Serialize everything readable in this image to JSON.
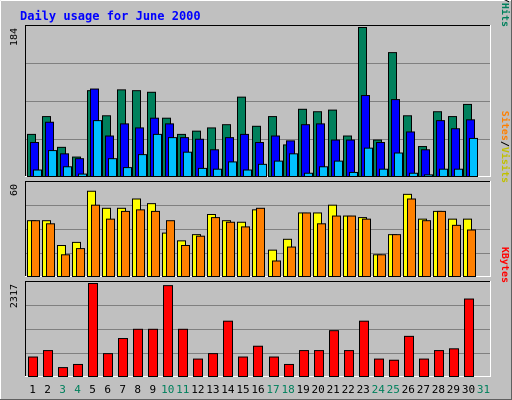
{
  "chart_data": {
    "type": "bar",
    "title": "Daily usage for June 2000",
    "categories": [
      "1",
      "2",
      "3",
      "4",
      "5",
      "6",
      "7",
      "8",
      "9",
      "10",
      "11",
      "12",
      "13",
      "14",
      "15",
      "16",
      "17",
      "18",
      "19",
      "20",
      "21",
      "22",
      "23",
      "24",
      "25",
      "26",
      "27",
      "28",
      "29",
      "30",
      "31"
    ],
    "weekend_days": [
      "3",
      "4",
      "10",
      "11",
      "17",
      "18",
      "24",
      "25",
      "31"
    ],
    "panels": [
      {
        "id": "hits",
        "ymax": 184,
        "ymax_label": "184",
        "legend": [
          "Pages",
          "/",
          "Files",
          "/",
          "Hits"
        ],
        "series": [
          {
            "name": "Hits",
            "values": [
              52,
              74,
              36,
              24,
              106,
              75,
              107,
              106,
              104,
              72,
              52,
              56,
              60,
              64,
              98,
              62,
              74,
              39,
              83,
              80,
              82,
              50,
              184,
              45,
              153,
              75,
              37,
              80,
              74,
              89,
              0
            ]
          },
          {
            "name": "Files",
            "values": [
              42,
              67,
              28,
              22,
              108,
              50,
              65,
              60,
              72,
              65,
              48,
              46,
              33,
              48,
              52,
              42,
              50,
              44,
              64,
              65,
              45,
              45,
              100,
              42,
              95,
              55,
              33,
              69,
              59,
              70,
              0
            ]
          },
          {
            "name": "Pages",
            "values": [
              8,
              32,
              12,
              3,
              69,
              22,
              11,
              27,
              52,
              48,
              30,
              10,
              9,
              18,
              8,
              15,
              19,
              28,
              4,
              12,
              19,
              5,
              35,
              9,
              29,
              4,
              2,
              9,
              9,
              47,
              0
            ]
          }
        ]
      },
      {
        "id": "visits",
        "ymax": 60,
        "ymax_label": "60",
        "legend": [
          "Sites",
          "/",
          "Visits"
        ],
        "series": [
          {
            "name": "Visits",
            "values": [
              36,
              36,
              20,
              22,
              55,
              44,
              44,
              50,
              47,
              28,
              23,
              27,
              40,
              36,
              35,
              43,
              17,
              24,
              41,
              41,
              46,
              39,
              38,
              14,
              27,
              53,
              37,
              42,
              37,
              37,
              0
            ]
          },
          {
            "name": "Sites",
            "values": [
              36,
              34,
              14,
              18,
              46,
              37,
              42,
              43,
              42,
              36,
              20,
              26,
              38,
              35,
              32,
              44,
              10,
              19,
              41,
              34,
              39,
              39,
              37,
              14,
              27,
              50,
              36,
              42,
              33,
              30,
              0
            ]
          }
        ]
      },
      {
        "id": "kbytes",
        "ymax": 2317,
        "ymax_label": "2317",
        "legend": [
          "KBytes"
        ],
        "series": [
          {
            "name": "KBytes",
            "values": [
              485,
              646,
              222,
              300,
              2317,
              570,
              946,
              1176,
              1176,
              2264,
              1176,
              434,
              570,
              1378,
              485,
              754,
              485,
              300,
              646,
              646,
              1142,
              646,
              1378,
              434,
              405,
              1000,
              434,
              646,
              690,
              1930,
              0
            ]
          }
        ]
      }
    ],
    "colors": {
      "hits": "#00805c",
      "files": "#0000ff",
      "pages": "#00c0ff",
      "visits": "#ffff00",
      "sites": "#ff8000",
      "kbytes": "#ff0000",
      "title": "#0000ff",
      "weekday_label": "#000000",
      "weekend_label": "#00805c"
    },
    "grid": true
  }
}
